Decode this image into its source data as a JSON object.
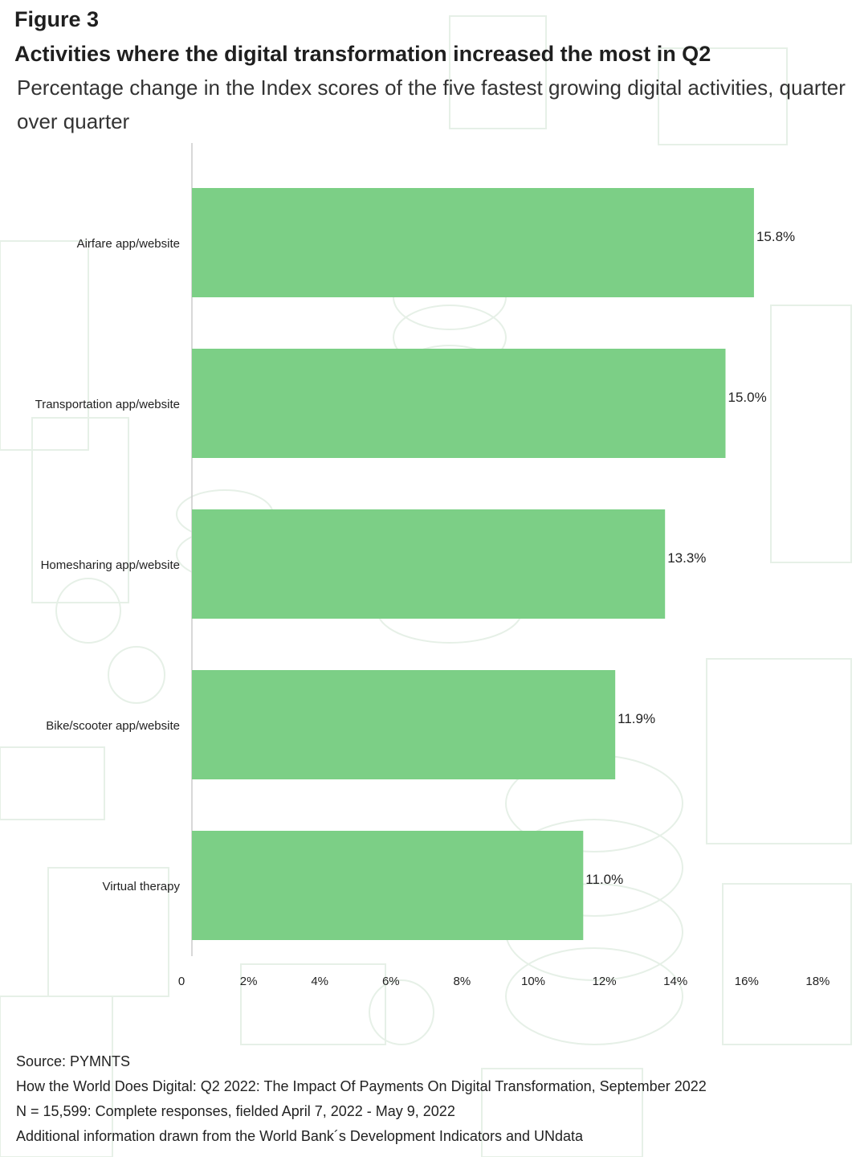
{
  "figure_label": "Figure 3",
  "title": "Activities where the digital transformation increased the most in Q2",
  "subtitle": "Percentage change in the Index scores of the five fastest growing digital activities, quarter over quarter",
  "colors": {
    "bar": "#7ccf86",
    "axis": "#cccccc",
    "text": "#222222",
    "background_pattern": "#e9f3ea"
  },
  "chart_data": {
    "type": "bar",
    "orientation": "horizontal",
    "categories": [
      "Airfare app/website",
      "Transportation app/website",
      "Homesharing app/website",
      "Bike/scooter app/website",
      "Virtual therapy"
    ],
    "values": [
      15.8,
      15.0,
      13.3,
      11.9,
      11.0
    ],
    "data_labels": [
      "15.8%",
      "15.0%",
      "13.3%",
      "11.9%",
      "11.0%"
    ],
    "x_ticks": [
      "0",
      "2%",
      "4%",
      "6%",
      "8%",
      "10%",
      "12%",
      "14%",
      "16%",
      "18%"
    ],
    "xlim": [
      0,
      18
    ],
    "grid": false
  },
  "footer": {
    "source": "Source: PYMNTS",
    "line2": "How the World Does Digital: Q2 2022: The Impact Of Payments On Digital Transformation, September 2022",
    "line3": "N = 15,599: Complete responses, fielded April 7, 2022 - May 9, 2022",
    "line4": "Additional information drawn from the World Bank´s  Development Indicators and UNdata"
  }
}
